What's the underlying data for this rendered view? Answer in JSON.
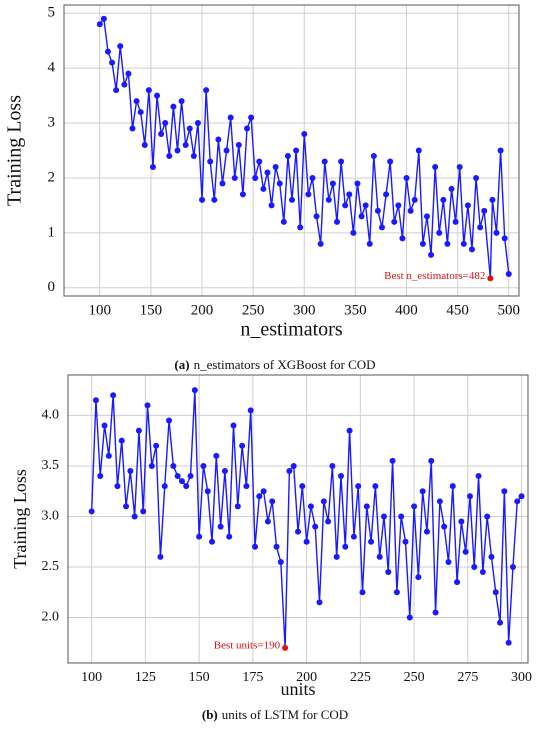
{
  "chart_data": [
    {
      "type": "line",
      "xlabel": "n_estimators",
      "ylabel": "Training Loss",
      "annotation": "Best n_estimators=482",
      "caption": {
        "label": "(a)",
        "text": "n_estimators of XGBoost for COD"
      },
      "color": "#1a1aff",
      "highlight_color": "#e01010",
      "grid": true,
      "xlim": [
        65,
        510
      ],
      "ylim": [
        -0.15,
        5.15
      ],
      "xticks": [
        100,
        150,
        200,
        250,
        300,
        350,
        400,
        450,
        500
      ],
      "yticks": [
        0,
        1,
        2,
        3,
        4,
        5
      ],
      "x": [
        100,
        104,
        108,
        112,
        116,
        120,
        124,
        128,
        132,
        136,
        140,
        144,
        148,
        152,
        156,
        160,
        164,
        168,
        172,
        176,
        180,
        184,
        188,
        192,
        196,
        200,
        204,
        208,
        212,
        216,
        220,
        224,
        228,
        232,
        236,
        240,
        244,
        248,
        252,
        256,
        260,
        264,
        268,
        272,
        276,
        280,
        284,
        288,
        292,
        296,
        300,
        304,
        308,
        312,
        316,
        320,
        324,
        328,
        332,
        336,
        340,
        344,
        348,
        352,
        356,
        360,
        364,
        368,
        372,
        376,
        380,
        384,
        388,
        392,
        396,
        400,
        404,
        408,
        412,
        416,
        420,
        424,
        428,
        432,
        436,
        440,
        444,
        448,
        452,
        456,
        460,
        464,
        468,
        472,
        476,
        482,
        484,
        488,
        492,
        496,
        500
      ],
      "values": [
        4.8,
        4.9,
        4.3,
        4.1,
        3.6,
        4.4,
        3.7,
        3.9,
        2.9,
        3.4,
        3.2,
        2.6,
        3.6,
        2.2,
        3.5,
        2.8,
        3.0,
        2.4,
        3.3,
        2.5,
        3.4,
        2.6,
        2.9,
        2.4,
        3.0,
        1.6,
        3.6,
        2.3,
        1.6,
        2.7,
        1.9,
        2.5,
        3.1,
        2.0,
        2.6,
        1.7,
        2.9,
        3.1,
        2.0,
        2.3,
        1.8,
        2.1,
        1.5,
        2.2,
        1.9,
        1.2,
        2.4,
        1.6,
        2.5,
        1.1,
        2.8,
        1.7,
        2.0,
        1.3,
        0.8,
        2.3,
        1.6,
        1.9,
        1.2,
        2.3,
        1.5,
        1.7,
        1.0,
        1.9,
        1.3,
        1.5,
        0.8,
        2.4,
        1.4,
        1.1,
        1.7,
        2.3,
        1.2,
        1.5,
        0.9,
        2.0,
        1.4,
        1.6,
        2.5,
        0.8,
        1.3,
        0.6,
        2.2,
        1.0,
        1.6,
        0.8,
        1.8,
        1.2,
        2.2,
        0.8,
        1.5,
        0.7,
        2.0,
        1.1,
        1.4,
        0.17,
        1.6,
        1.0,
        2.5,
        0.9,
        0.25
      ]
    },
    {
      "type": "line",
      "xlabel": "units",
      "ylabel": "Training Loss",
      "annotation": "Best units=190",
      "caption": {
        "label": "(b)",
        "text": "units of LSTM for COD"
      },
      "color": "#1a1aff",
      "highlight_color": "#e01010",
      "grid": true,
      "xlim": [
        89,
        303
      ],
      "ylim": [
        1.55,
        4.4
      ],
      "xticks": [
        100,
        125,
        150,
        175,
        200,
        225,
        250,
        275,
        300
      ],
      "yticks": [
        {
          "value": 2,
          "label": "2.0"
        },
        2.5,
        {
          "value": 3,
          "label": "3.0"
        },
        3.5,
        {
          "value": 4,
          "label": "4.0"
        }
      ],
      "x": [
        100,
        102,
        104,
        106,
        108,
        110,
        112,
        114,
        116,
        118,
        120,
        122,
        124,
        126,
        128,
        130,
        132,
        134,
        136,
        138,
        140,
        142,
        144,
        146,
        148,
        150,
        152,
        154,
        156,
        158,
        160,
        162,
        164,
        166,
        168,
        170,
        172,
        174,
        176,
        178,
        180,
        182,
        184,
        186,
        188,
        190,
        192,
        194,
        196,
        198,
        200,
        202,
        204,
        206,
        208,
        210,
        212,
        214,
        216,
        218,
        220,
        222,
        224,
        226,
        228,
        230,
        232,
        234,
        236,
        238,
        240,
        242,
        244,
        246,
        248,
        250,
        252,
        254,
        256,
        258,
        260,
        262,
        264,
        266,
        268,
        270,
        272,
        274,
        276,
        278,
        280,
        282,
        284,
        286,
        288,
        290,
        292,
        294,
        296,
        298,
        300
      ],
      "values": [
        3.05,
        4.15,
        3.4,
        3.9,
        3.6,
        4.2,
        3.3,
        3.75,
        3.1,
        3.45,
        3.0,
        3.85,
        3.05,
        4.1,
        3.5,
        3.7,
        2.6,
        3.3,
        3.95,
        3.5,
        3.4,
        3.35,
        3.3,
        3.4,
        4.25,
        2.8,
        3.5,
        3.25,
        2.75,
        3.6,
        2.9,
        3.45,
        2.8,
        3.9,
        3.1,
        3.7,
        3.3,
        4.05,
        2.7,
        3.2,
        3.25,
        2.95,
        3.15,
        2.7,
        2.55,
        1.7,
        3.45,
        3.5,
        2.85,
        3.3,
        2.75,
        3.1,
        2.9,
        2.15,
        3.15,
        2.95,
        3.5,
        2.6,
        3.4,
        2.7,
        3.85,
        2.8,
        3.3,
        2.25,
        3.1,
        2.75,
        3.3,
        2.6,
        3.0,
        2.45,
        3.55,
        2.25,
        3.0,
        2.75,
        2.0,
        3.1,
        2.4,
        3.25,
        2.85,
        3.55,
        2.05,
        3.15,
        2.9,
        2.55,
        3.3,
        2.35,
        2.95,
        2.65,
        3.2,
        2.5,
        3.4,
        2.45,
        3.0,
        2.6,
        2.25,
        1.95,
        3.25,
        1.75,
        2.5,
        3.15,
        3.2
      ]
    }
  ]
}
